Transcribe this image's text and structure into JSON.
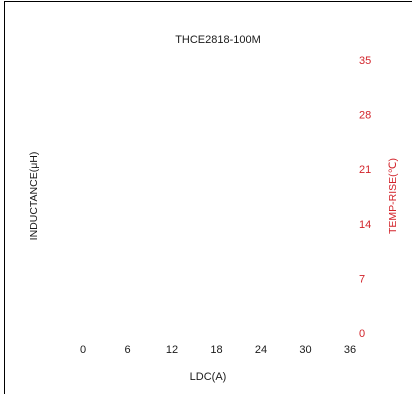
{
  "chart_data": {
    "type": "line",
    "title": "THCE2818-100M",
    "xlabel": "LDC(A)",
    "ylabel": "INDUCTANCE(μH)",
    "y2label": "TEMP-RISE(℃)",
    "x_ticks": [
      "0",
      "6",
      "12",
      "18",
      "24",
      "30",
      "36"
    ],
    "y2_ticks": [
      "0",
      "7",
      "14",
      "21",
      "28",
      "35"
    ],
    "xlim": [
      0,
      36
    ],
    "y2lim": [
      0,
      35
    ],
    "grid": false,
    "series": [],
    "colors": {
      "text": "#1a1a1a",
      "secondary_axis": "#d2232a",
      "frame": "#000000"
    }
  }
}
